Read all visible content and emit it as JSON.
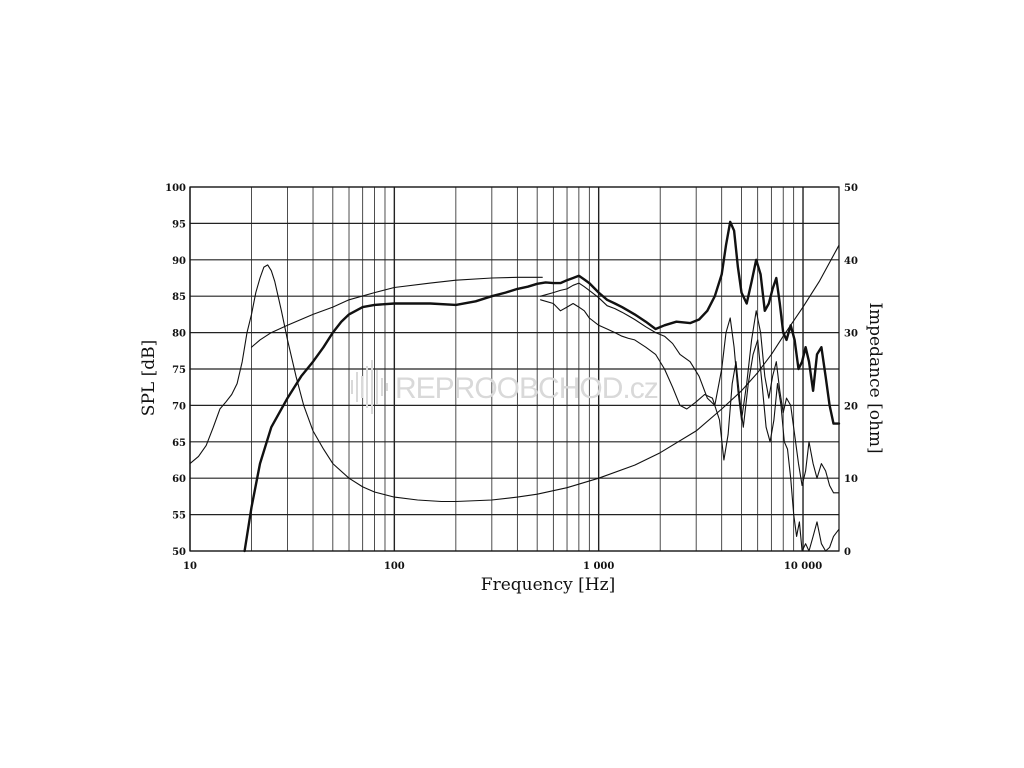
{
  "watermark": "REPROOBCHOD.cz",
  "chart_data": {
    "type": "line",
    "xlabel": "Frequency [Hz]",
    "ylabel": "SPL [dB]",
    "y2label": "Impedance [ohm]",
    "xscale": "log",
    "xlim": [
      10,
      15000
    ],
    "ylim": [
      50,
      100
    ],
    "y2lim": [
      0,
      50
    ],
    "grid": true,
    "x_ticks": [
      {
        "value": 10,
        "label": "10"
      },
      {
        "value": 100,
        "label": "100"
      },
      {
        "value": 1000,
        "label": "1 000"
      },
      {
        "value": 10000,
        "label": "10 000"
      }
    ],
    "y_ticks": [
      {
        "value": 50,
        "label": "50"
      },
      {
        "value": 55,
        "label": "55"
      },
      {
        "value": 60,
        "label": "60"
      },
      {
        "value": 65,
        "label": "65"
      },
      {
        "value": 70,
        "label": "70"
      },
      {
        "value": 75,
        "label": "75"
      },
      {
        "value": 80,
        "label": "80"
      },
      {
        "value": 85,
        "label": "85"
      },
      {
        "value": 90,
        "label": "90"
      },
      {
        "value": 95,
        "label": "95"
      },
      {
        "value": 100,
        "label": "100"
      }
    ],
    "y2_ticks": [
      {
        "value": 0,
        "label": "0"
      },
      {
        "value": 10,
        "label": "10"
      },
      {
        "value": 20,
        "label": "20"
      },
      {
        "value": 30,
        "label": "30"
      },
      {
        "value": 40,
        "label": "40"
      },
      {
        "value": 50,
        "label": "50"
      }
    ],
    "series": [
      {
        "axis": "left",
        "style": "bold",
        "points": [
          [
            18.5,
            50
          ],
          [
            20,
            56
          ],
          [
            22,
            62
          ],
          [
            25,
            67
          ],
          [
            30,
            71
          ],
          [
            35,
            74
          ],
          [
            40,
            76
          ],
          [
            45,
            78
          ],
          [
            50,
            80
          ],
          [
            55,
            81.5
          ],
          [
            60,
            82.5
          ],
          [
            70,
            83.5
          ],
          [
            80,
            83.8
          ],
          [
            100,
            84
          ],
          [
            150,
            84
          ],
          [
            200,
            83.8
          ],
          [
            250,
            84.3
          ],
          [
            300,
            85
          ],
          [
            350,
            85.5
          ],
          [
            400,
            86
          ],
          [
            450,
            86.3
          ],
          [
            500,
            86.7
          ],
          [
            550,
            86.9
          ],
          [
            600,
            86.8
          ],
          [
            650,
            86.8
          ],
          [
            700,
            87.2
          ],
          [
            750,
            87.5
          ],
          [
            800,
            87.8
          ],
          [
            850,
            87.3
          ],
          [
            900,
            86.8
          ],
          [
            1000,
            85.5
          ],
          [
            1100,
            84.5
          ],
          [
            1200,
            84
          ],
          [
            1300,
            83.5
          ],
          [
            1400,
            83
          ],
          [
            1500,
            82.5
          ],
          [
            1700,
            81.5
          ],
          [
            1900,
            80.5
          ],
          [
            2100,
            81
          ],
          [
            2400,
            81.5
          ],
          [
            2800,
            81.3
          ],
          [
            3100,
            81.8
          ],
          [
            3400,
            83
          ],
          [
            3700,
            85
          ],
          [
            4000,
            88
          ],
          [
            4200,
            92
          ],
          [
            4400,
            95.2
          ],
          [
            4600,
            94
          ],
          [
            4800,
            89
          ],
          [
            5000,
            85.5
          ],
          [
            5300,
            84
          ],
          [
            5600,
            87
          ],
          [
            5900,
            90
          ],
          [
            6200,
            88
          ],
          [
            6500,
            83
          ],
          [
            6800,
            84
          ],
          [
            7100,
            86
          ],
          [
            7400,
            87.5
          ],
          [
            7700,
            84
          ],
          [
            8000,
            80
          ],
          [
            8300,
            79
          ],
          [
            8700,
            81
          ],
          [
            9100,
            79
          ],
          [
            9500,
            75
          ],
          [
            9900,
            76
          ],
          [
            10300,
            78
          ],
          [
            10700,
            76
          ],
          [
            11200,
            72
          ],
          [
            11700,
            77
          ],
          [
            12300,
            78
          ],
          [
            12900,
            74
          ],
          [
            13500,
            70
          ],
          [
            14100,
            67.5
          ],
          [
            15000,
            67.5
          ]
        ]
      },
      {
        "axis": "left",
        "style": "thin",
        "points": [
          [
            20,
            78
          ],
          [
            22,
            79
          ],
          [
            25,
            80
          ],
          [
            30,
            81
          ],
          [
            40,
            82.5
          ],
          [
            50,
            83.5
          ],
          [
            60,
            84.5
          ],
          [
            80,
            85.5
          ],
          [
            100,
            86.2
          ],
          [
            150,
            86.8
          ],
          [
            200,
            87.2
          ],
          [
            300,
            87.5
          ],
          [
            400,
            87.6
          ],
          [
            530,
            87.6
          ]
        ]
      },
      {
        "axis": "left",
        "style": "thin",
        "points": [
          [
            520,
            85
          ],
          [
            600,
            85.5
          ],
          [
            650,
            85.8
          ],
          [
            700,
            86
          ],
          [
            750,
            86.5
          ],
          [
            800,
            86.8
          ],
          [
            850,
            86.3
          ],
          [
            900,
            85.8
          ],
          [
            1000,
            84.8
          ],
          [
            1100,
            83.7
          ],
          [
            1200,
            83.3
          ],
          [
            1300,
            82.8
          ],
          [
            1400,
            82.3
          ],
          [
            1500,
            81.8
          ],
          [
            1700,
            80.8
          ],
          [
            1900,
            80
          ],
          [
            2100,
            79.5
          ],
          [
            2300,
            78.5
          ],
          [
            2500,
            77
          ],
          [
            2800,
            76
          ],
          [
            3100,
            74
          ],
          [
            3400,
            71
          ],
          [
            3700,
            70
          ],
          [
            4000,
            75
          ],
          [
            4200,
            80
          ],
          [
            4400,
            82
          ],
          [
            4600,
            78
          ],
          [
            4800,
            72
          ],
          [
            5000,
            68
          ],
          [
            5300,
            73
          ],
          [
            5600,
            79
          ],
          [
            5900,
            83
          ],
          [
            6200,
            80
          ],
          [
            6500,
            74
          ],
          [
            6800,
            71
          ],
          [
            7100,
            74
          ],
          [
            7400,
            76
          ],
          [
            7700,
            72
          ],
          [
            8000,
            69
          ],
          [
            8300,
            71
          ],
          [
            8700,
            70
          ],
          [
            9100,
            66
          ],
          [
            9500,
            62
          ],
          [
            9900,
            59
          ],
          [
            10300,
            61
          ],
          [
            10700,
            65
          ],
          [
            11200,
            62
          ],
          [
            11700,
            60
          ],
          [
            12300,
            62
          ],
          [
            12900,
            61
          ],
          [
            13500,
            59
          ],
          [
            14100,
            58
          ],
          [
            15000,
            58
          ]
        ]
      },
      {
        "axis": "left",
        "style": "thin",
        "points": [
          [
            520,
            84.5
          ],
          [
            600,
            84
          ],
          [
            650,
            83
          ],
          [
            700,
            83.5
          ],
          [
            750,
            84
          ],
          [
            800,
            83.5
          ],
          [
            850,
            83
          ],
          [
            900,
            82
          ],
          [
            1000,
            81
          ],
          [
            1100,
            80.5
          ],
          [
            1200,
            80
          ],
          [
            1300,
            79.5
          ],
          [
            1400,
            79.2
          ],
          [
            1500,
            79
          ],
          [
            1700,
            78
          ],
          [
            1900,
            77
          ],
          [
            2100,
            75
          ],
          [
            2300,
            72.5
          ],
          [
            2500,
            70
          ],
          [
            2700,
            69.5
          ],
          [
            3000,
            70.5
          ],
          [
            3300,
            71.5
          ],
          [
            3600,
            71
          ],
          [
            3900,
            68
          ],
          [
            4100,
            62.5
          ],
          [
            4300,
            66
          ],
          [
            4500,
            73
          ],
          [
            4700,
            76
          ],
          [
            4900,
            71
          ],
          [
            5100,
            67
          ],
          [
            5400,
            73
          ],
          [
            5700,
            77
          ],
          [
            6000,
            79
          ],
          [
            6300,
            73
          ],
          [
            6600,
            67
          ],
          [
            6900,
            65
          ],
          [
            7200,
            68
          ],
          [
            7500,
            73
          ],
          [
            7800,
            70
          ],
          [
            8100,
            65
          ],
          [
            8400,
            64
          ],
          [
            8700,
            60
          ],
          [
            9000,
            55
          ],
          [
            9300,
            52
          ],
          [
            9600,
            54
          ],
          [
            9900,
            50
          ],
          [
            10300,
            51
          ],
          [
            10700,
            50
          ],
          [
            11200,
            52
          ],
          [
            11700,
            54
          ],
          [
            12300,
            51
          ],
          [
            12900,
            50
          ],
          [
            13500,
            50.5
          ],
          [
            14100,
            52
          ],
          [
            15000,
            53
          ]
        ]
      },
      {
        "axis": "right",
        "style": "thin",
        "points": [
          [
            10,
            12
          ],
          [
            11,
            13
          ],
          [
            12,
            14.5
          ],
          [
            13,
            17
          ],
          [
            14,
            19.5
          ],
          [
            15,
            20.5
          ],
          [
            16,
            21.5
          ],
          [
            17,
            23
          ],
          [
            18,
            26
          ],
          [
            19,
            30
          ],
          [
            20,
            32.5
          ],
          [
            21,
            35.5
          ],
          [
            22,
            37.5
          ],
          [
            23,
            39
          ],
          [
            24,
            39.3
          ],
          [
            25,
            38.5
          ],
          [
            26,
            37
          ],
          [
            28,
            33
          ],
          [
            30,
            29
          ],
          [
            33,
            24
          ],
          [
            36,
            20
          ],
          [
            40,
            16.5
          ],
          [
            45,
            14
          ],
          [
            50,
            12
          ],
          [
            60,
            10
          ],
          [
            70,
            8.8
          ],
          [
            80,
            8.1
          ],
          [
            100,
            7.4
          ],
          [
            130,
            7
          ],
          [
            170,
            6.8
          ],
          [
            200,
            6.8
          ],
          [
            300,
            7
          ],
          [
            400,
            7.4
          ],
          [
            500,
            7.8
          ],
          [
            700,
            8.7
          ],
          [
            1000,
            10
          ],
          [
            1500,
            11.8
          ],
          [
            2000,
            13.5
          ],
          [
            3000,
            16.5
          ],
          [
            4000,
            19.5
          ],
          [
            5000,
            22
          ],
          [
            6000,
            24.5
          ],
          [
            7000,
            27
          ],
          [
            8000,
            29.5
          ],
          [
            10000,
            33.5
          ],
          [
            12000,
            37
          ],
          [
            15000,
            42
          ]
        ]
      }
    ]
  }
}
